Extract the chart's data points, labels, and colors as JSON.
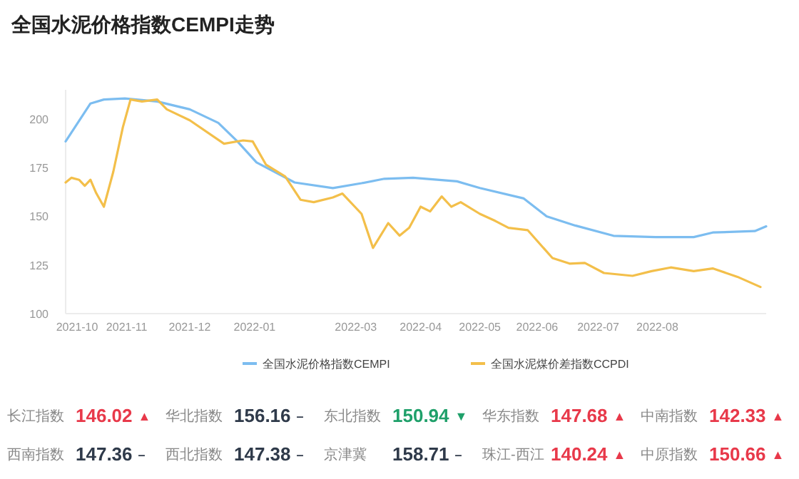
{
  "chart_data": [
    {
      "type": "line",
      "title": "全国水泥价格指数CEMPI走势",
      "series": [
        {
          "name": "全国水泥价格指数CEMPI",
          "color": "#7cbdf0",
          "x": [
            "2021-09-25",
            "2021-09-30",
            "2021-10-08",
            "2021-10-15",
            "2021-10-26",
            "2021-11-12",
            "2021-11-29",
            "2021-12-14",
            "2021-12-24",
            "2022-01-03",
            "2022-01-23",
            "2022-02-12",
            "2022-02-27",
            "2022-03-11",
            "2022-03-26",
            "2022-04-18",
            "2022-04-30",
            "2022-05-23",
            "2022-06-04",
            "2022-06-19",
            "2022-07-09",
            "2022-07-31",
            "2022-08-20",
            "2022-08-30",
            "2022-09-21",
            "2022-09-27"
          ],
          "values": [
            188.5,
            196,
            208,
            210,
            210.5,
            209,
            205,
            198,
            188.5,
            177.7,
            167.4,
            164.5,
            167,
            169.3,
            169.8,
            168,
            164.5,
            159.2,
            150,
            145.3,
            140,
            139.3,
            139.3,
            141.7,
            142.4,
            144.8
          ]
        },
        {
          "name": "全国水泥煤价差指数CCPDI",
          "color": "#f3bf4a",
          "x": [
            "2021-09-25",
            "2021-09-28",
            "2021-10-02",
            "2021-10-05",
            "2021-10-08",
            "2021-10-11",
            "2021-10-15",
            "2021-10-20",
            "2021-10-25",
            "2021-10-29",
            "2021-11-04",
            "2021-11-12",
            "2021-11-17",
            "2021-11-29",
            "2021-12-17",
            "2021-12-27",
            "2022-01-01",
            "2022-01-08",
            "2022-01-18",
            "2022-01-26",
            "2022-02-02",
            "2022-02-12",
            "2022-02-17",
            "2022-02-27",
            "2022-03-05",
            "2022-03-13",
            "2022-03-19",
            "2022-03-24",
            "2022-03-30",
            "2022-04-04",
            "2022-04-10",
            "2022-04-15",
            "2022-04-20",
            "2022-04-30",
            "2022-05-08",
            "2022-05-15",
            "2022-05-25",
            "2022-06-07",
            "2022-06-16",
            "2022-06-24",
            "2022-07-04",
            "2022-07-19",
            "2022-07-29",
            "2022-08-08",
            "2022-08-20",
            "2022-08-30",
            "2022-09-12",
            "2022-09-24"
          ],
          "values": [
            167.4,
            169.8,
            168.8,
            165.7,
            168.8,
            162,
            154.9,
            172.9,
            195.7,
            210,
            209,
            210,
            205,
            199.3,
            187.3,
            189,
            188.5,
            176.5,
            170.5,
            158.5,
            157.3,
            159.7,
            161.7,
            151.3,
            133.8,
            146.5,
            140.1,
            144.1,
            154.9,
            152.5,
            160.2,
            154.9,
            157.3,
            151.3,
            147.7,
            144.1,
            142.9,
            128.6,
            125.7,
            126.1,
            120.9,
            119.4,
            121.8,
            123.7,
            121.8,
            123.2,
            118.9,
            113.7
          ]
        }
      ],
      "xticks": [
        {
          "value": "2021-10-01",
          "label": "2021-10"
        },
        {
          "value": "2021-10-27",
          "label": "2021-11"
        },
        {
          "value": "2021-11-29",
          "label": "2021-12"
        },
        {
          "value": "2022-01-02",
          "label": "2022-01"
        },
        {
          "value": "2022-02-24",
          "label": "2022-03"
        },
        {
          "value": "2022-03-30",
          "label": "2022-04"
        },
        {
          "value": "2022-04-30",
          "label": "2022-05"
        },
        {
          "value": "2022-05-30",
          "label": "2022-06"
        },
        {
          "value": "2022-07-01",
          "label": "2022-07"
        },
        {
          "value": "2022-08-01",
          "label": "2022-08"
        }
      ],
      "xlim": [
        "2021-09-25",
        "2022-09-27"
      ],
      "ylim": [
        100,
        215
      ],
      "yticks": [
        100,
        125,
        150,
        175,
        200
      ],
      "grid": false,
      "legend": "bottom",
      "marker": "none",
      "line_style": "solid"
    },
    {
      "type": "other",
      "categories": [
        "长江指数",
        "华北指数",
        "东北指数",
        "华东指数",
        "中南指数",
        "西南指数",
        "西北指数",
        "京津冀",
        "珠江-西江",
        "中原指数"
      ],
      "values": [
        146.02,
        156.16,
        150.94,
        147.68,
        142.33,
        147.36,
        147.38,
        158.71,
        140.24,
        150.66
      ],
      "data_labels": true,
      "annotations": [
        "▲",
        "–",
        "▼",
        "▲",
        "▲",
        "–",
        "–",
        "–",
        "▲",
        "▲"
      ],
      "colors": [
        "#e8394a",
        "#2f3a4a",
        "#1fa06a",
        "#e8394a",
        "#e8394a",
        "#2f3a4a",
        "#2f3a4a",
        "#2f3a4a",
        "#e8394a",
        "#e8394a"
      ]
    }
  ]
}
